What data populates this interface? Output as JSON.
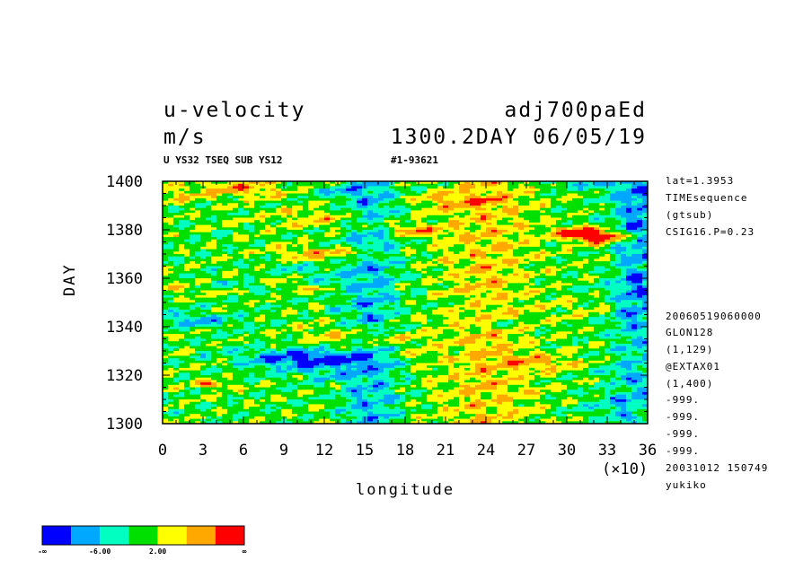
{
  "header": {
    "variable": "u-velocity",
    "units": "m/s",
    "experiment": "adj700paEd",
    "timestamp": "1300.2DAY 06/05/19",
    "subtitle_left": "U YS32 TSEQ SUB YS12",
    "subtitle_right": "#1-93621"
  },
  "side_info": {
    "top": [
      "lat=1.3953",
      "TIMEsequence",
      "(gtsub)",
      "CSIG16.P=0.23"
    ],
    "bottom": [
      "20060519060000",
      "GLON128",
      "(1,129)",
      "@EXTAX01",
      "(1,400)",
      "-999.",
      "-999.",
      "-999.",
      "-999.",
      "20031012 150749",
      "yukiko"
    ]
  },
  "chart_data": {
    "type": "heatmap",
    "xlabel": "longitude",
    "x_multiplier_label": "(×10)",
    "ylabel": "DAY",
    "xlim": [
      0,
      36
    ],
    "ylim": [
      1300,
      1400
    ],
    "x_ticks": [
      "0",
      "3",
      "6",
      "9",
      "12",
      "15",
      "18",
      "21",
      "24",
      "27",
      "30",
      "33",
      "36"
    ],
    "y_ticks": [
      "1300",
      "1320",
      "1340",
      "1360",
      "1380",
      "1400"
    ],
    "colorbar": {
      "colors": [
        "#0000ff",
        "#00a8ff",
        "#00ffc0",
        "#00e000",
        "#ffff00",
        "#ffa800",
        "#ff0000"
      ],
      "labels": [
        "-∞",
        "-6.00",
        "2.00",
        "∞"
      ]
    },
    "grid": false
  }
}
